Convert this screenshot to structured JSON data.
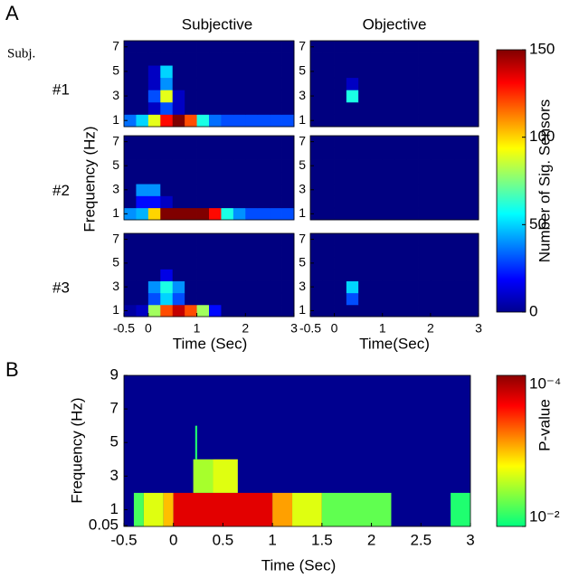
{
  "panel_labels": [
    "A",
    "B"
  ],
  "panel_a": {
    "subject_header": "Subj.",
    "subjects": [
      "#1",
      "#2",
      "#3"
    ],
    "column_titles": [
      "Subjective",
      "Objective"
    ],
    "xlabels": [
      "Time (Sec)",
      "Time(Sec)"
    ],
    "ylabel": "Frequency (Hz)",
    "colorbar": {
      "label": "Number of Sig. Sensors",
      "lim": [
        0,
        150
      ],
      "ticks": [
        0,
        50,
        100,
        150
      ],
      "colormap": "jet"
    },
    "xlim": [
      -0.5,
      3
    ],
    "xticks": [
      -0.5,
      0,
      1,
      2,
      3
    ],
    "ylim": [
      0.5,
      7.5
    ],
    "yticks": [
      1,
      3,
      5,
      7
    ],
    "xbins": [
      -0.5,
      -0.25,
      0,
      0.25,
      0.5,
      0.75,
      1,
      1.25,
      1.5,
      1.75,
      2,
      2.25,
      2.5,
      2.75,
      3
    ],
    "freqs": [
      1,
      2,
      3,
      4,
      5,
      6,
      7
    ]
  },
  "chart_data": [
    {
      "type": "heatmap",
      "z": [
        [
          35,
          50,
          90,
          130,
          150,
          120,
          60,
          35,
          30,
          30,
          30,
          30,
          30,
          30
        ],
        [
          0,
          0,
          10,
          30,
          10,
          0,
          0,
          0,
          0,
          0,
          0,
          0,
          0,
          0
        ],
        [
          0,
          0,
          30,
          90,
          10,
          0,
          0,
          0,
          0,
          0,
          0,
          0,
          0,
          0
        ],
        [
          0,
          0,
          10,
          40,
          0,
          0,
          0,
          0,
          0,
          0,
          0,
          0,
          0,
          0
        ],
        [
          0,
          0,
          10,
          50,
          0,
          0,
          0,
          0,
          0,
          0,
          0,
          0,
          0,
          0
        ],
        [
          0,
          0,
          0,
          0,
          0,
          0,
          0,
          0,
          0,
          0,
          0,
          0,
          0,
          0
        ],
        [
          0,
          0,
          0,
          0,
          0,
          0,
          0,
          0,
          0,
          0,
          0,
          0,
          0,
          0
        ]
      ]
    },
    {
      "type": "heatmap",
      "z": [
        [
          0,
          0,
          0,
          0,
          0,
          0,
          0,
          0,
          0,
          0,
          0,
          0,
          0,
          0
        ],
        [
          0,
          0,
          0,
          0,
          0,
          0,
          0,
          0,
          0,
          0,
          0,
          0,
          0,
          0
        ],
        [
          0,
          0,
          0,
          60,
          0,
          0,
          0,
          0,
          0,
          0,
          0,
          0,
          0,
          0
        ],
        [
          0,
          0,
          0,
          10,
          0,
          0,
          0,
          0,
          0,
          0,
          0,
          0,
          0,
          0
        ],
        [
          0,
          0,
          0,
          0,
          0,
          0,
          0,
          0,
          0,
          0,
          0,
          0,
          0,
          0
        ],
        [
          0,
          0,
          0,
          0,
          0,
          0,
          0,
          0,
          0,
          0,
          0,
          0,
          0,
          0
        ],
        [
          0,
          0,
          0,
          0,
          0,
          0,
          0,
          0,
          0,
          0,
          0,
          0,
          0,
          0
        ]
      ]
    },
    {
      "type": "heatmap",
      "z": [
        [
          40,
          45,
          100,
          150,
          150,
          150,
          150,
          130,
          60,
          40,
          30,
          30,
          30,
          30
        ],
        [
          0,
          20,
          20,
          10,
          0,
          0,
          0,
          0,
          0,
          0,
          0,
          0,
          0,
          0
        ],
        [
          0,
          40,
          40,
          0,
          0,
          0,
          0,
          0,
          0,
          0,
          0,
          0,
          0,
          0
        ],
        [
          0,
          0,
          0,
          0,
          0,
          0,
          0,
          0,
          0,
          0,
          0,
          0,
          0,
          0
        ],
        [
          0,
          0,
          0,
          0,
          0,
          0,
          0,
          0,
          0,
          0,
          0,
          0,
          0,
          0
        ],
        [
          0,
          0,
          0,
          0,
          0,
          0,
          0,
          0,
          0,
          0,
          0,
          0,
          0,
          0
        ],
        [
          0,
          0,
          0,
          0,
          0,
          0,
          0,
          0,
          0,
          0,
          0,
          0,
          0,
          0
        ]
      ]
    },
    {
      "type": "heatmap",
      "z": [
        [
          0,
          0,
          0,
          0,
          0,
          0,
          0,
          0,
          0,
          0,
          0,
          0,
          0,
          0
        ],
        [
          0,
          0,
          0,
          0,
          0,
          0,
          0,
          0,
          0,
          0,
          0,
          0,
          0,
          0
        ],
        [
          0,
          0,
          0,
          0,
          0,
          0,
          0,
          0,
          0,
          0,
          0,
          0,
          0,
          0
        ],
        [
          0,
          0,
          0,
          0,
          0,
          0,
          0,
          0,
          0,
          0,
          0,
          0,
          0,
          0
        ],
        [
          0,
          0,
          0,
          0,
          0,
          0,
          0,
          0,
          0,
          0,
          0,
          0,
          0,
          0
        ],
        [
          0,
          0,
          0,
          0,
          0,
          0,
          0,
          0,
          0,
          0,
          0,
          0,
          0,
          0
        ],
        [
          0,
          0,
          0,
          0,
          0,
          0,
          0,
          0,
          0,
          0,
          0,
          0,
          0,
          0
        ]
      ]
    },
    {
      "type": "heatmap",
      "z": [
        [
          5,
          10,
          80,
          120,
          140,
          120,
          80,
          20,
          0,
          0,
          0,
          0,
          0,
          0
        ],
        [
          0,
          0,
          30,
          50,
          30,
          0,
          0,
          0,
          0,
          0,
          0,
          0,
          0,
          0
        ],
        [
          0,
          0,
          40,
          60,
          40,
          0,
          0,
          0,
          0,
          0,
          0,
          0,
          0,
          0
        ],
        [
          0,
          0,
          0,
          15,
          0,
          0,
          0,
          0,
          0,
          0,
          0,
          0,
          0,
          0
        ],
        [
          0,
          0,
          0,
          0,
          0,
          0,
          0,
          0,
          0,
          0,
          0,
          0,
          0,
          0
        ],
        [
          0,
          0,
          0,
          0,
          0,
          0,
          0,
          0,
          0,
          0,
          0,
          0,
          0,
          0
        ],
        [
          0,
          0,
          0,
          0,
          0,
          0,
          0,
          0,
          0,
          0,
          0,
          0,
          0,
          0
        ]
      ]
    },
    {
      "type": "heatmap",
      "z": [
        [
          0,
          0,
          0,
          0,
          0,
          0,
          0,
          0,
          0,
          0,
          0,
          0,
          0,
          0
        ],
        [
          0,
          0,
          0,
          30,
          0,
          0,
          0,
          0,
          0,
          0,
          0,
          0,
          0,
          0
        ],
        [
          0,
          0,
          0,
          50,
          0,
          0,
          0,
          0,
          0,
          0,
          0,
          0,
          0,
          0
        ],
        [
          0,
          0,
          0,
          0,
          0,
          0,
          0,
          0,
          0,
          0,
          0,
          0,
          0,
          0
        ],
        [
          0,
          0,
          0,
          0,
          0,
          0,
          0,
          0,
          0,
          0,
          0,
          0,
          0,
          0
        ],
        [
          0,
          0,
          0,
          0,
          0,
          0,
          0,
          0,
          0,
          0,
          0,
          0,
          0,
          0
        ],
        [
          0,
          0,
          0,
          0,
          0,
          0,
          0,
          0,
          0,
          0,
          0,
          0,
          0,
          0
        ]
      ]
    },
    {
      "type": "segments",
      "xlabel": "Time (Sec)",
      "ylabel": "Frequency (Hz)",
      "xlim": [
        -0.5,
        3
      ],
      "xticks": [
        -0.5,
        0,
        0.5,
        1,
        1.5,
        2,
        2.5,
        3
      ],
      "ylim": [
        0,
        9
      ],
      "yticks": [
        0.05,
        1,
        3,
        5,
        7,
        9
      ],
      "colorbar": {
        "label": "P-value",
        "lim": [
          0.01,
          0.0001
        ],
        "log": true,
        "ticks": [
          {
            "value": 0.0001,
            "label": "10⁻⁴"
          },
          {
            "value": 0.01,
            "label": "10⁻²"
          }
        ]
      },
      "rows": [
        {
          "freq": 1,
          "segments": [
            {
              "x": [
                -0.4,
                -0.3
              ],
              "p": 0.006
            },
            {
              "x": [
                -0.3,
                -0.1
              ],
              "p": 0.002
            },
            {
              "x": [
                -0.1,
                0
              ],
              "p": 0.001
            },
            {
              "x": [
                0,
                1
              ],
              "p": 0.0002
            },
            {
              "x": [
                1,
                1.2
              ],
              "p": 0.0008
            },
            {
              "x": [
                1.2,
                1.5
              ],
              "p": 0.002
            },
            {
              "x": [
                1.5,
                2.2
              ],
              "p": 0.005
            },
            {
              "x": [
                2.8,
                3
              ],
              "p": 0.008
            }
          ]
        },
        {
          "freq": 3,
          "segments": [
            {
              "x": [
                0.2,
                0.4
              ],
              "p": 0.003
            },
            {
              "x": [
                0.4,
                0.65
              ],
              "p": 0.002
            }
          ]
        },
        {
          "freq": 5,
          "segments": [
            {
              "x": [
                0.22,
                0.24
              ],
              "p": 0.008
            }
          ]
        }
      ]
    }
  ]
}
